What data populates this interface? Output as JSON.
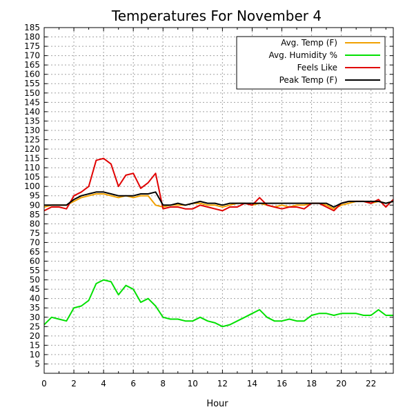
{
  "chart_data": {
    "type": "line",
    "title": "Temperatures For November 4",
    "xlabel": "Hour",
    "ylabel": "",
    "xlim": [
      0,
      23.5
    ],
    "ylim": [
      0,
      185
    ],
    "x_ticks": [
      0,
      2,
      4,
      6,
      8,
      10,
      12,
      14,
      16,
      18,
      20,
      22
    ],
    "y_ticks": [
      5,
      10,
      15,
      20,
      25,
      30,
      35,
      40,
      45,
      50,
      55,
      60,
      65,
      70,
      75,
      80,
      85,
      90,
      95,
      100,
      105,
      110,
      115,
      120,
      125,
      130,
      135,
      140,
      145,
      150,
      155,
      160,
      165,
      170,
      175,
      180,
      185
    ],
    "grid": true,
    "legend_position": "top-right",
    "x": [
      0,
      0.5,
      1,
      1.5,
      2,
      2.5,
      3,
      3.5,
      4,
      4.5,
      5,
      5.5,
      6,
      6.5,
      7,
      7.5,
      8,
      8.5,
      9,
      9.5,
      10,
      10.5,
      11,
      11.5,
      12,
      12.5,
      13,
      13.5,
      14,
      14.5,
      15,
      15.5,
      16,
      16.5,
      17,
      17.5,
      18,
      18.5,
      19,
      19.5,
      20,
      20.5,
      21,
      21.5,
      22,
      22.5,
      23,
      23.5
    ],
    "series": [
      {
        "name": "Avg. Temp (F)",
        "color": "#f0a000",
        "values": [
          89,
          90,
          90,
          90,
          92,
          94,
          95,
          96,
          96,
          95,
          94,
          95,
          94,
          95,
          95,
          90,
          89,
          90,
          90,
          90,
          91,
          91,
          90,
          90,
          89,
          90,
          91,
          91,
          90,
          91,
          90,
          89,
          90,
          89,
          90,
          90,
          91,
          91,
          90,
          88,
          90,
          91,
          92,
          92,
          91,
          92,
          91,
          92
        ]
      },
      {
        "name": "Avg. Humidity %",
        "color": "#00e000",
        "values": [
          26,
          30,
          29,
          28,
          35,
          36,
          39,
          48,
          50,
          49,
          42,
          47,
          45,
          38,
          40,
          36,
          30,
          29,
          29,
          28,
          28,
          30,
          28,
          27,
          25,
          26,
          28,
          30,
          32,
          34,
          30,
          28,
          28,
          29,
          28,
          28,
          31,
          32,
          32,
          31,
          32,
          32,
          32,
          31,
          31,
          34,
          31,
          31
        ]
      },
      {
        "name": "Feels Like",
        "color": "#e00000",
        "values": [
          87,
          89,
          89,
          88,
          95,
          97,
          100,
          114,
          115,
          112,
          100,
          106,
          107,
          99,
          102,
          107,
          88,
          89,
          89,
          88,
          88,
          90,
          89,
          88,
          87,
          89,
          89,
          91,
          90,
          94,
          90,
          89,
          88,
          89,
          89,
          88,
          91,
          91,
          89,
          87,
          91,
          92,
          92,
          92,
          91,
          93,
          89,
          93
        ]
      },
      {
        "name": "Peak Temp (F)",
        "color": "#000000",
        "values": [
          90,
          90,
          90,
          90,
          93,
          95,
          96,
          97,
          97,
          96,
          95,
          95,
          95,
          96,
          96,
          97,
          90,
          90,
          91,
          90,
          91,
          92,
          91,
          91,
          90,
          91,
          91,
          91,
          91,
          91,
          91,
          91,
          91,
          91,
          91,
          91,
          91,
          91,
          91,
          89,
          91,
          92,
          92,
          92,
          92,
          92,
          91,
          92
        ]
      }
    ]
  }
}
